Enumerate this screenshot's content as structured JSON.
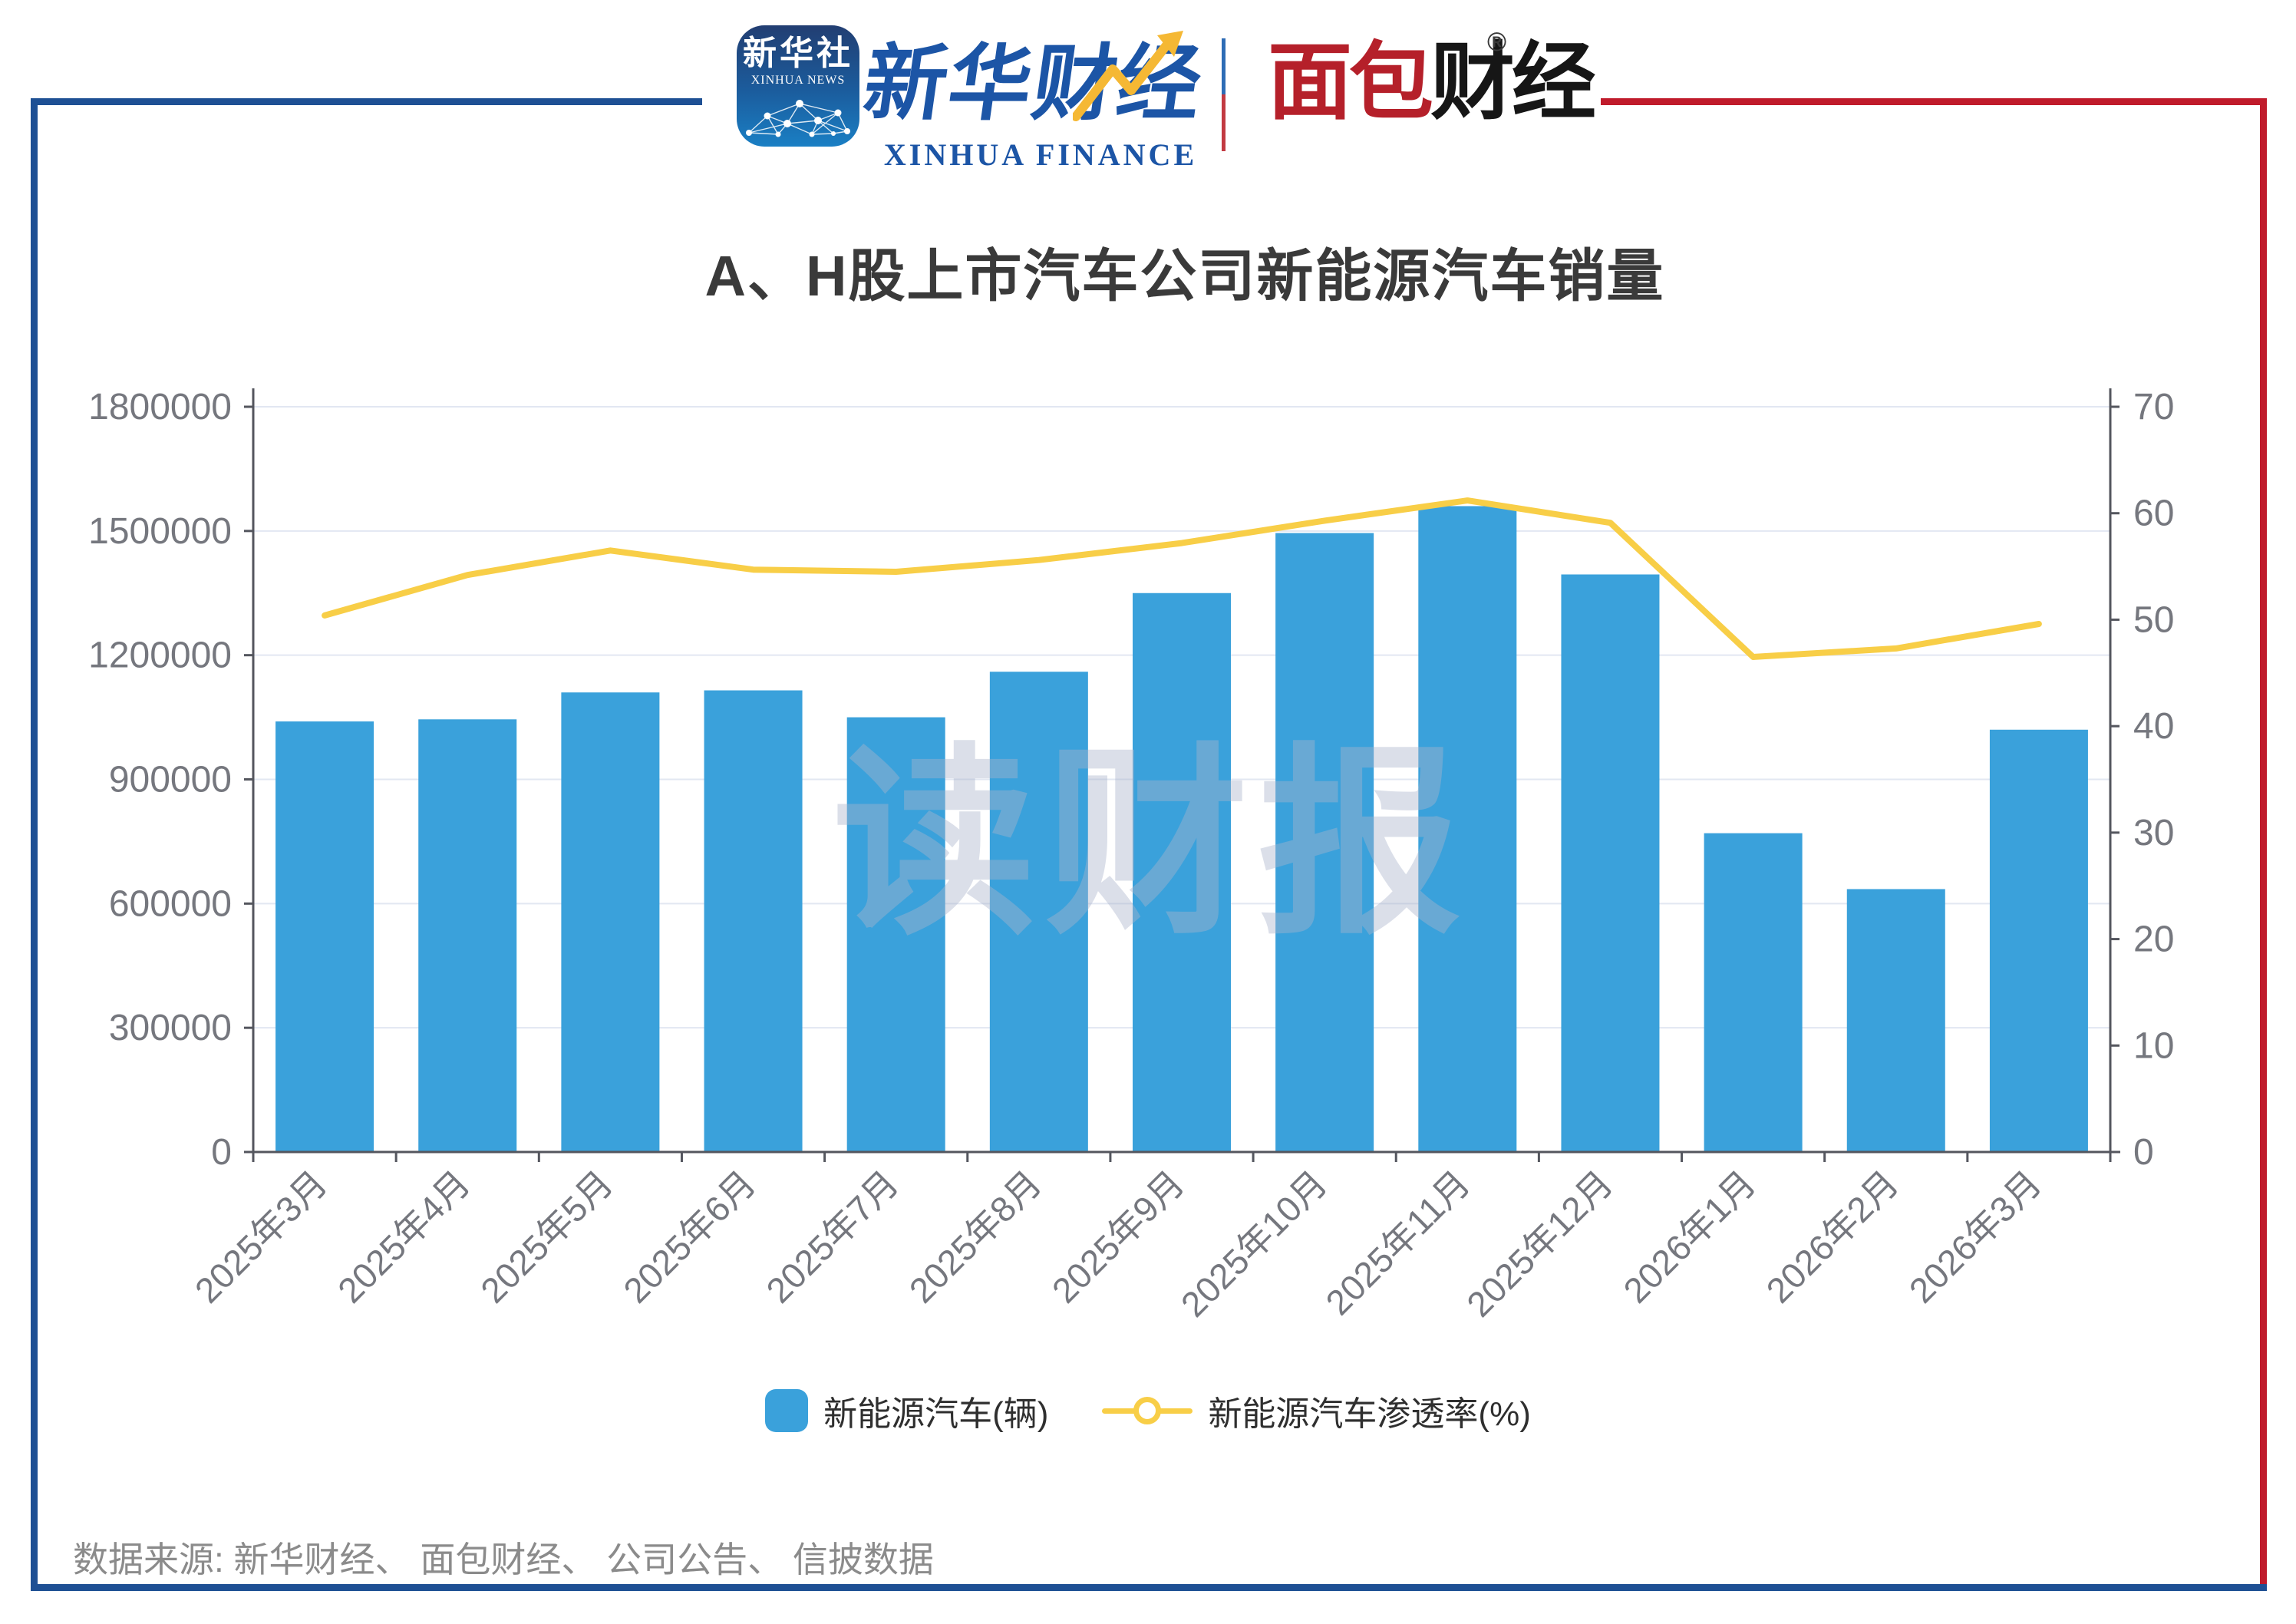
{
  "frame": {
    "blue": "#1e5094",
    "red": "#c01b2b"
  },
  "header": {
    "xinhua_app": {
      "name_cn": "新华社",
      "name_en": "XINHUA NEWS"
    },
    "xinhua_finance": {
      "name_cn": "新华财经",
      "name_en": "XINHUA FINANCE"
    },
    "bread_finance": {
      "part_red": "面包",
      "part_black": "财经",
      "registered_mark": "®"
    }
  },
  "title": "A、H股上市汽车公司新能源汽车销量",
  "watermark": "读财报",
  "legend": {
    "items": [
      {
        "label": "新能源汽车(辆)",
        "type": "bar",
        "color": "#3aa1db"
      },
      {
        "label": "新能源汽车渗透率(%)",
        "type": "line",
        "color": "#f8ce47"
      }
    ]
  },
  "source_note": "数据来源: 新华财经、 面包财经、 公司公告、 信披数据",
  "chart_data": {
    "type": "bar",
    "combo": "bar+line, dual y-axis",
    "title": "A、H股上市汽车公司新能源汽车销量",
    "categories": [
      "2025年3月",
      "2025年4月",
      "2025年5月",
      "2025年6月",
      "2025年7月",
      "2025年8月",
      "2025年9月",
      "2025年10月",
      "2025年11月",
      "2025年12月",
      "2026年1月",
      "2026年2月",
      "2026年3月"
    ],
    "series": [
      {
        "name": "新能源汽车(辆)",
        "type": "bar",
        "y_axis": "left",
        "color": "#3aa1db",
        "values": [
          1040000,
          1045000,
          1110000,
          1115000,
          1050000,
          1160000,
          1350000,
          1495000,
          1560000,
          1395000,
          770000,
          635000,
          1020000
        ]
      },
      {
        "name": "新能源汽车渗透率(%)",
        "type": "line",
        "y_axis": "right",
        "color": "#f8ce47",
        "values": [
          50.4,
          54.2,
          56.5,
          54.7,
          54.5,
          55.6,
          57.2,
          59.3,
          61.2,
          59.1,
          46.5,
          47.3,
          49.6
        ]
      }
    ],
    "left_axis": {
      "min": 0,
      "max": 1800000,
      "interval": 300000,
      "tick_labels": [
        "0",
        "300000",
        "600000",
        "900000",
        "1200000",
        "1500000",
        "1800000"
      ]
    },
    "right_axis": {
      "min": 0,
      "max": 70,
      "interval": 10,
      "tick_labels": [
        "0",
        "10",
        "20",
        "30",
        "40",
        "50",
        "60",
        "70"
      ]
    },
    "grid": true,
    "legend_position": "bottom",
    "colors": {
      "gridline": "#e2e7f2",
      "axis_line": "#54565e",
      "axis_label": "#75777e"
    }
  }
}
